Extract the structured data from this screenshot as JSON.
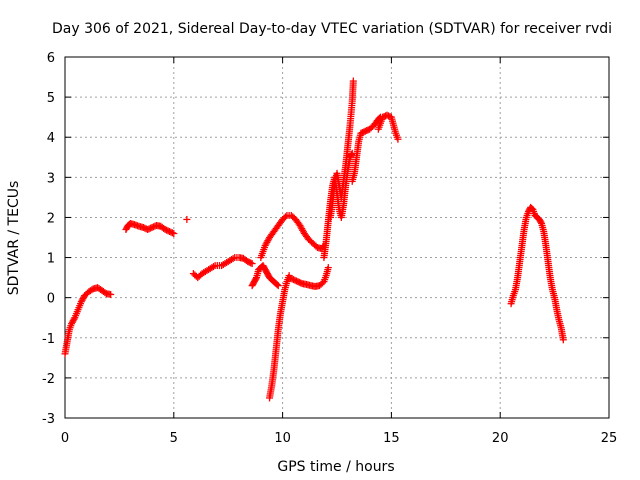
{
  "chart_data": {
    "type": "scatter",
    "title": "Day 306 of 2021, Sidereal Day-to-day VTEC variation (SDTVAR) for receiver rvdi",
    "xlabel": "GPS time / hours",
    "ylabel": "SDTVAR / TECUs",
    "xlim": [
      0,
      25
    ],
    "ylim": [
      -3,
      6
    ],
    "x_ticks": [
      "0",
      "5",
      "10",
      "15",
      "20",
      "25"
    ],
    "y_ticks": [
      "-3",
      "-2",
      "-1",
      "0",
      "1",
      "2",
      "3",
      "4",
      "5",
      "6"
    ],
    "grid": true,
    "marker": "plus",
    "color": "#ff0000",
    "segments": [
      {
        "x": [
          0.0,
          0.1,
          0.2,
          0.3,
          0.45,
          0.6,
          0.75,
          0.9,
          1.1,
          1.3,
          1.5,
          1.7,
          1.9,
          2.1
        ],
        "y": [
          -1.4,
          -1.1,
          -0.8,
          -0.65,
          -0.5,
          -0.3,
          -0.1,
          0.05,
          0.15,
          0.22,
          0.25,
          0.18,
          0.1,
          0.08
        ]
      },
      {
        "x": [
          2.8,
          2.9,
          3.0,
          3.2,
          3.4,
          3.6,
          3.8,
          4.0,
          4.2,
          4.4,
          4.6,
          4.8,
          5.0
        ],
        "y": [
          1.7,
          1.8,
          1.85,
          1.82,
          1.78,
          1.75,
          1.7,
          1.75,
          1.8,
          1.78,
          1.7,
          1.65,
          1.6
        ]
      },
      {
        "x": [
          5.6
        ],
        "y": [
          1.95
        ]
      },
      {
        "x": [
          5.9,
          6.1,
          6.3,
          6.6,
          6.9,
          7.2,
          7.5,
          7.8,
          8.0,
          8.2,
          8.4,
          8.6
        ],
        "y": [
          0.6,
          0.5,
          0.6,
          0.7,
          0.8,
          0.8,
          0.9,
          1.0,
          1.0,
          0.98,
          0.9,
          0.85
        ]
      },
      {
        "x": [
          8.6,
          8.7,
          8.8,
          8.9,
          9.0,
          9.1,
          9.2,
          9.3,
          9.4,
          9.5,
          9.6,
          9.7,
          9.8
        ],
        "y": [
          0.3,
          0.4,
          0.5,
          0.7,
          0.75,
          0.8,
          0.7,
          0.6,
          0.5,
          0.45,
          0.4,
          0.35,
          0.3
        ]
      },
      {
        "x": [
          9.0,
          9.2,
          9.4,
          9.6,
          9.8,
          10.0,
          10.2,
          10.4,
          10.6,
          10.8,
          11.0,
          11.2,
          11.4,
          11.6,
          11.8,
          11.9
        ],
        "y": [
          1.0,
          1.3,
          1.5,
          1.65,
          1.8,
          1.95,
          2.05,
          2.05,
          1.95,
          1.8,
          1.6,
          1.45,
          1.35,
          1.25,
          1.22,
          1.3
        ]
      },
      {
        "x": [
          9.4,
          9.5,
          9.6,
          9.7,
          9.8,
          9.9,
          10.0,
          10.1,
          10.2,
          10.3
        ],
        "y": [
          -2.5,
          -2.2,
          -1.8,
          -1.3,
          -0.8,
          -0.4,
          -0.1,
          0.2,
          0.4,
          0.55
        ]
      },
      {
        "x": [
          10.3,
          10.5,
          10.7,
          10.9,
          11.1,
          11.3,
          11.5,
          11.7,
          11.9,
          12.0,
          12.1
        ],
        "y": [
          0.5,
          0.45,
          0.4,
          0.35,
          0.33,
          0.3,
          0.28,
          0.3,
          0.4,
          0.55,
          0.75
        ]
      },
      {
        "x": [
          11.9,
          12.0,
          12.1,
          12.2,
          12.3,
          12.4,
          12.5,
          12.6,
          12.7,
          12.8,
          12.9,
          13.0,
          13.1,
          13.2
        ],
        "y": [
          1.0,
          1.4,
          1.9,
          2.4,
          2.8,
          3.0,
          2.6,
          2.2,
          2.0,
          2.3,
          2.8,
          3.2,
          3.5,
          3.6
        ]
      },
      {
        "x": [
          12.2,
          12.3,
          12.4,
          12.5,
          12.6,
          12.7,
          12.8,
          12.9,
          13.0,
          13.1,
          13.2,
          13.25
        ],
        "y": [
          2.0,
          2.4,
          2.9,
          3.1,
          2.8,
          2.5,
          2.9,
          3.3,
          3.8,
          4.3,
          4.9,
          5.4
        ]
      },
      {
        "x": [
          13.2,
          13.3,
          13.4,
          13.5,
          13.6,
          13.8,
          14.0,
          14.2,
          14.4,
          14.5
        ],
        "y": [
          2.9,
          3.1,
          3.5,
          3.9,
          4.1,
          4.15,
          4.2,
          4.3,
          4.45,
          4.5
        ]
      },
      {
        "x": [
          14.4,
          14.6,
          14.8,
          15.0,
          15.1,
          15.2,
          15.3
        ],
        "y": [
          4.2,
          4.5,
          4.55,
          4.5,
          4.3,
          4.1,
          3.95
        ]
      },
      {
        "x": [
          20.5,
          20.6,
          20.7,
          20.8,
          20.9,
          21.0,
          21.1,
          21.2,
          21.3,
          21.4,
          21.5,
          21.6,
          21.7,
          21.8,
          21.9,
          22.0,
          22.1,
          22.2,
          22.3,
          22.4,
          22.5,
          22.6,
          22.7,
          22.8,
          22.9
        ],
        "y": [
          -0.15,
          0.05,
          0.2,
          0.5,
          0.9,
          1.3,
          1.7,
          2.0,
          2.15,
          2.25,
          2.2,
          2.05,
          2.0,
          1.95,
          1.85,
          1.65,
          1.3,
          0.9,
          0.5,
          0.2,
          0.0,
          -0.3,
          -0.55,
          -0.75,
          -1.05
        ]
      }
    ]
  }
}
